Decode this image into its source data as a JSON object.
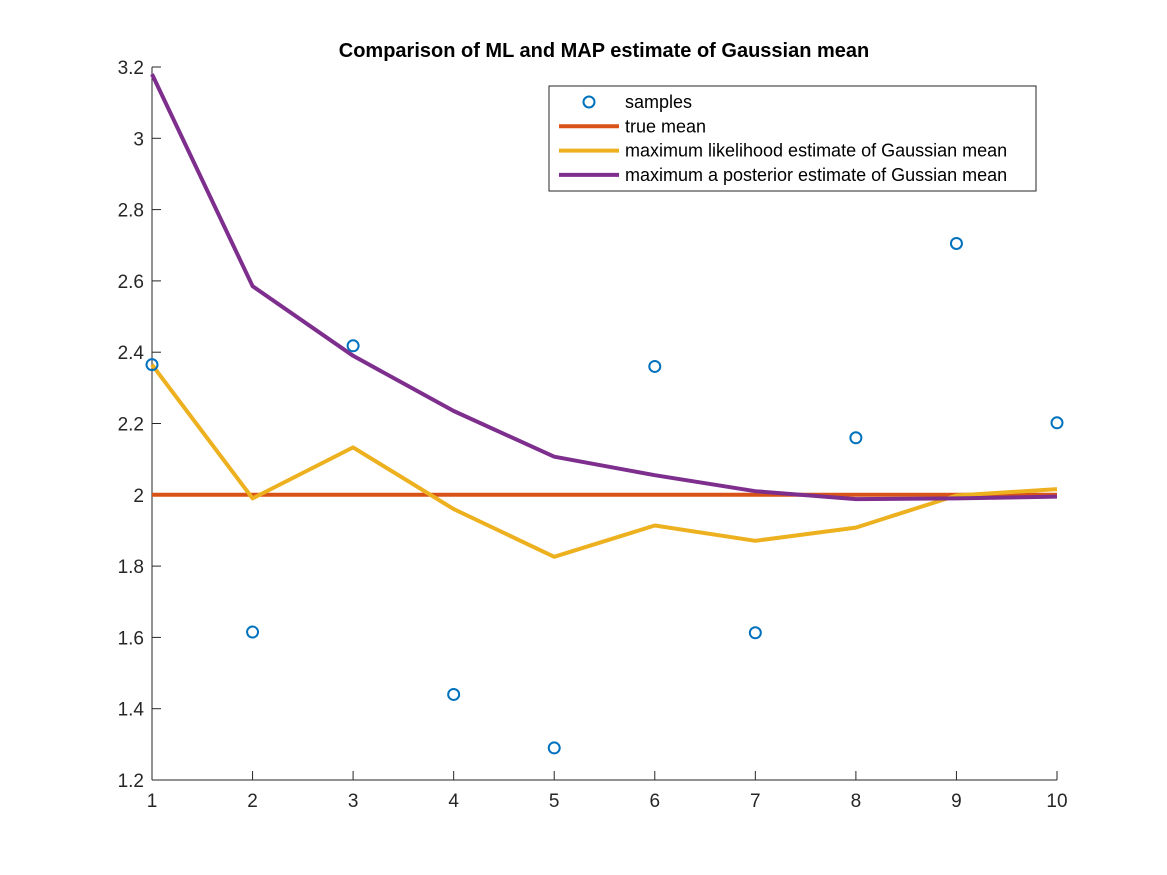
{
  "chart_data": {
    "type": "line",
    "title": "Comparison of ML and MAP estimate of Gaussian mean",
    "xlabel": "",
    "ylabel": "",
    "xlim": [
      1,
      10
    ],
    "ylim": [
      1.2,
      3.2
    ],
    "xticks": [
      1,
      2,
      3,
      4,
      5,
      6,
      7,
      8,
      9,
      10
    ],
    "yticks": [
      1.2,
      1.4,
      1.6,
      1.8,
      2,
      2.2,
      2.4,
      2.6,
      2.8,
      3,
      3.2
    ],
    "xtick_labels": [
      "1",
      "2",
      "3",
      "4",
      "5",
      "6",
      "7",
      "8",
      "9",
      "10"
    ],
    "ytick_labels": [
      "1.2",
      "1.4",
      "1.6",
      "1.8",
      "2",
      "2.2",
      "2.4",
      "2.6",
      "2.8",
      "3",
      "3.2"
    ],
    "grid": false,
    "legend_position": "top-right",
    "x": [
      1,
      2,
      3,
      4,
      5,
      6,
      7,
      8,
      9,
      10
    ],
    "series": [
      {
        "name": "samples",
        "style": "markers",
        "color": "#0072BD",
        "values": [
          2.365,
          1.615,
          2.418,
          1.44,
          1.29,
          2.36,
          1.613,
          2.16,
          2.705,
          2.202
        ]
      },
      {
        "name": "true mean",
        "style": "line",
        "color": "#D95319",
        "values": [
          2,
          2,
          2,
          2,
          2,
          2,
          2,
          2,
          2,
          2
        ]
      },
      {
        "name": "maximum likelihood estimate of Gaussian mean",
        "style": "line",
        "color": "#EDB120",
        "values": [
          2.365,
          1.99,
          2.133,
          1.96,
          1.826,
          1.914,
          1.871,
          1.908,
          1.998,
          2.016
        ]
      },
      {
        "name": "maximum a posterior estimate of Gussian mean",
        "style": "line",
        "color": "#7E2F8E",
        "values": [
          3.18,
          2.585,
          2.39,
          2.235,
          2.107,
          2.055,
          2.01,
          1.988,
          1.99,
          1.995
        ]
      }
    ]
  }
}
